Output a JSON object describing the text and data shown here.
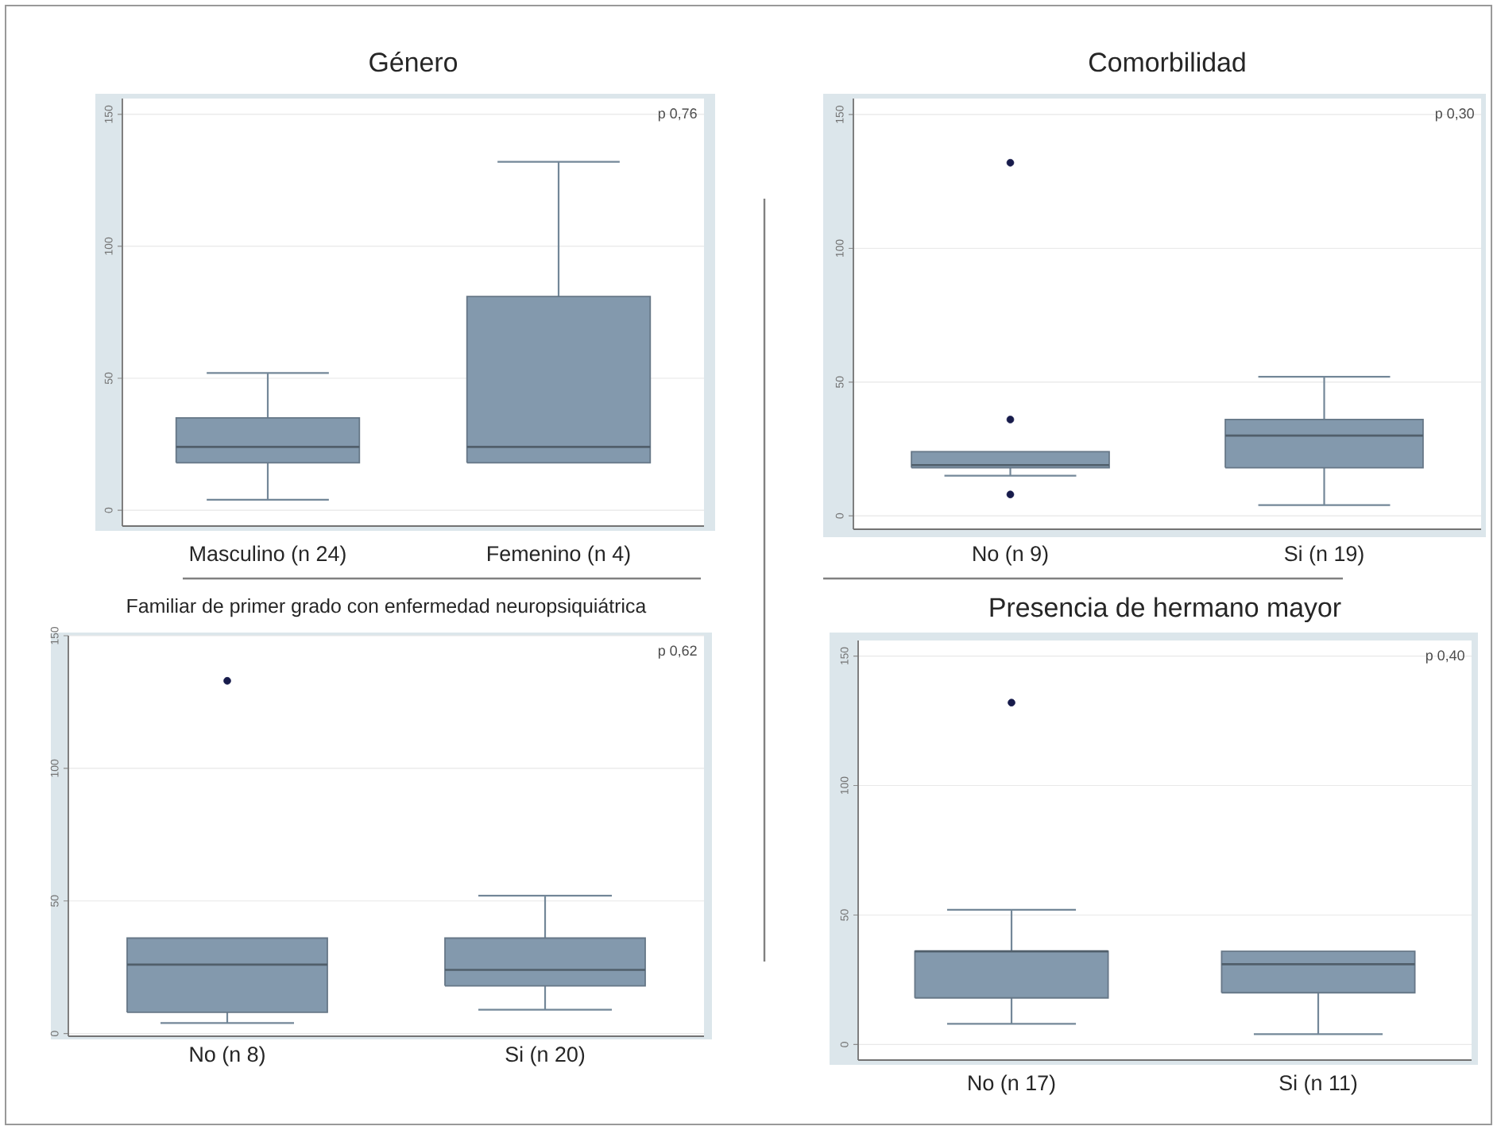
{
  "chart_data": [
    {
      "type": "box",
      "title": "Género",
      "categories": [
        "Masculino (n 24)",
        "Femenino (n 4)"
      ],
      "boxes": [
        {
          "low": 4,
          "q1": 18,
          "median": 24,
          "q3": 35,
          "high": 52
        },
        {
          "low": 18,
          "q1": 18,
          "median": 24,
          "q3": 81,
          "high": 132
        }
      ],
      "color": "#8399ad",
      "ylim": [
        -6,
        156
      ],
      "yticks": [
        0,
        50,
        100,
        150
      ],
      "grid": "y",
      "marker": "circle",
      "annotations": [
        "p 0,76"
      ]
    },
    {
      "type": "box",
      "title": "Comorbilidad",
      "categories": [
        "No (n 9)",
        "Si (n 19)"
      ],
      "boxes": [
        {
          "low": 15,
          "q1": 18,
          "median": 19,
          "q3": 24,
          "high": 24,
          "outliers": [
            132,
            36,
            8
          ]
        },
        {
          "low": 4,
          "q1": 18,
          "median": 30,
          "q3": 36,
          "high": 52
        }
      ],
      "color": "#8399ad",
      "ylim": [
        -5,
        156
      ],
      "yticks": [
        0,
        50,
        100,
        150
      ],
      "grid": "y",
      "marker": "circle",
      "annotations": [
        "p 0,30"
      ]
    },
    {
      "type": "box",
      "title": "Familiar de primer grado con enfermedad neuropsiquiátrica",
      "categories": [
        "No (n 8)",
        "Si (n 20)"
      ],
      "boxes": [
        {
          "low": 4,
          "q1": 8,
          "median": 26,
          "q3": 36,
          "high": 36,
          "outliers": [
            133
          ]
        },
        {
          "low": 9,
          "q1": 18,
          "median": 24,
          "q3": 36,
          "high": 52
        }
      ],
      "color": "#8399ad",
      "ylim": [
        -1,
        150
      ],
      "yticks": [
        0,
        50,
        100,
        150
      ],
      "grid": "y",
      "marker": "circle",
      "annotations": [
        "p 0,62"
      ]
    },
    {
      "type": "box",
      "title": "Presencia de hermano mayor",
      "categories": [
        "No (n 17)",
        "Si (n 11)"
      ],
      "boxes": [
        {
          "low": 8,
          "q1": 18,
          "median": 36,
          "q3": 36,
          "high": 52,
          "outliers": [
            132
          ]
        },
        {
          "low": 4,
          "q1": 20,
          "median": 31,
          "q3": 36,
          "high": 36
        }
      ],
      "color": "#8399ad",
      "ylim": [
        -6,
        156
      ],
      "yticks": [
        0,
        50,
        100,
        150
      ],
      "grid": "y",
      "marker": "circle",
      "annotations": [
        "p 0,40"
      ]
    }
  ]
}
